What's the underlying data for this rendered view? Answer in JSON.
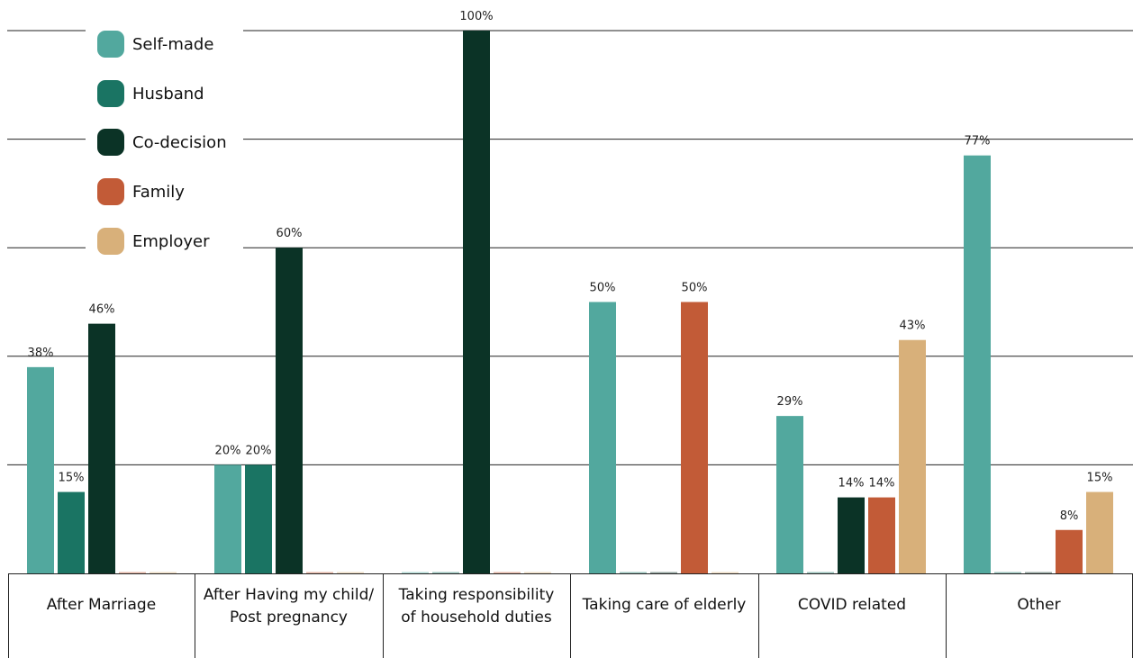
{
  "chart_data": {
    "type": "bar",
    "title": "",
    "xlabel": "",
    "ylabel": "",
    "ylim": [
      0,
      100
    ],
    "grid": true,
    "legend_position": "top-left",
    "categories": [
      [
        "After Marriage"
      ],
      [
        "After Having my child/",
        "Post pregnancy"
      ],
      [
        "Taking responsibility",
        "of household duties"
      ],
      [
        "Taking care of elderly"
      ],
      [
        "COVID related"
      ],
      [
        "Other"
      ]
    ],
    "series": [
      {
        "name": "Self-made",
        "color": "#52a89e",
        "values": [
          38,
          20,
          0,
          50,
          29,
          77
        ]
      },
      {
        "name": "Husband",
        "color": "#1a7463",
        "values": [
          15,
          20,
          0,
          0,
          0,
          0
        ]
      },
      {
        "name": "Co-decision",
        "color": "#0b3326",
        "values": [
          46,
          60,
          100,
          0,
          14,
          0
        ]
      },
      {
        "name": "Family",
        "color": "#c25b37",
        "values": [
          0,
          0,
          0,
          50,
          14,
          8
        ]
      },
      {
        "name": "Employer",
        "color": "#d8b07a",
        "values": [
          0,
          0,
          0,
          0,
          43,
          15
        ]
      }
    ],
    "data_labels": [
      [
        "38%",
        "15%",
        "46%",
        "",
        ""
      ],
      [
        "20%",
        "20%",
        "60%",
        "",
        ""
      ],
      [
        "",
        "",
        "100%",
        "",
        ""
      ],
      [
        "50%",
        "",
        "",
        "50%",
        ""
      ],
      [
        "29%",
        "",
        "14%",
        "14%",
        "43%"
      ],
      [
        "77%",
        "",
        "",
        "8%",
        "15%"
      ]
    ]
  }
}
